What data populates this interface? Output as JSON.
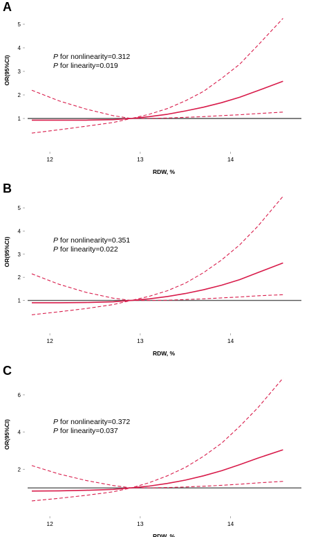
{
  "chart_data": [
    {
      "panel": "A",
      "type": "line",
      "xlabel": "RDW, %",
      "ylabel": "OR(95%CI)",
      "xlim": [
        11.8,
        14.6
      ],
      "ylim": [
        0,
        5.5
      ],
      "xticks": [
        "12",
        "13",
        "14"
      ],
      "yticks": [
        "1",
        "2",
        "3",
        "4",
        "5"
      ],
      "annotation": {
        "p_prefix": "P",
        "nonlinearity": " for nonlinearity=0.312",
        "linearity": " for linearity=0.019"
      },
      "reference_line": 1,
      "series": [
        {
          "role": "estimate",
          "style": "solid",
          "x": [
            11.8,
            12.1,
            12.4,
            12.7,
            12.9,
            13.1,
            13.3,
            13.5,
            13.7,
            13.9,
            14.1,
            14.3,
            14.58
          ],
          "y": [
            0.93,
            0.93,
            0.93,
            0.95,
            1.0,
            1.08,
            1.18,
            1.32,
            1.48,
            1.67,
            1.9,
            2.18,
            2.58
          ]
        },
        {
          "role": "upper",
          "style": "dashed",
          "x": [
            11.8,
            12.1,
            12.4,
            12.7,
            12.9,
            13.1,
            13.3,
            13.5,
            13.7,
            13.9,
            14.1,
            14.3,
            14.58
          ],
          "y": [
            2.2,
            1.75,
            1.4,
            1.12,
            1.0,
            1.18,
            1.42,
            1.75,
            2.15,
            2.7,
            3.3,
            4.1,
            5.25
          ]
        },
        {
          "role": "lower",
          "style": "dashed",
          "x": [
            11.8,
            12.1,
            12.4,
            12.7,
            12.9,
            13.1,
            13.3,
            13.5,
            13.7,
            13.9,
            14.1,
            14.3,
            14.58
          ],
          "y": [
            0.38,
            0.52,
            0.67,
            0.83,
            1.0,
            1.0,
            1.02,
            1.05,
            1.08,
            1.12,
            1.16,
            1.21,
            1.27
          ]
        }
      ],
      "colors": {
        "curve": "#d81b4a",
        "reference": "#555555"
      }
    },
    {
      "panel": "B",
      "type": "line",
      "xlabel": "RDW, %",
      "ylabel": "OR(95%CI)",
      "xlim": [
        11.8,
        14.6
      ],
      "ylim": [
        0,
        5.6
      ],
      "xticks": [
        "12",
        "13",
        "14"
      ],
      "yticks": [
        "1",
        "2",
        "3",
        "4",
        "5"
      ],
      "annotation": {
        "p_prefix": "P",
        "nonlinearity": " for nonlinearity=0.351",
        "linearity": " for linearity=0.022"
      },
      "reference_line": 1,
      "series": [
        {
          "role": "estimate",
          "style": "solid",
          "x": [
            11.8,
            12.1,
            12.4,
            12.7,
            12.9,
            13.1,
            13.3,
            13.5,
            13.7,
            13.9,
            14.1,
            14.3,
            14.58
          ],
          "y": [
            0.9,
            0.9,
            0.91,
            0.94,
            1.0,
            1.07,
            1.17,
            1.3,
            1.46,
            1.66,
            1.9,
            2.2,
            2.62
          ]
        },
        {
          "role": "upper",
          "style": "dashed",
          "x": [
            11.8,
            12.1,
            12.4,
            12.7,
            12.9,
            13.1,
            13.3,
            13.5,
            13.7,
            13.9,
            14.1,
            14.3,
            14.58
          ],
          "y": [
            2.15,
            1.7,
            1.35,
            1.1,
            1.0,
            1.18,
            1.42,
            1.75,
            2.2,
            2.75,
            3.4,
            4.2,
            5.5
          ]
        },
        {
          "role": "lower",
          "style": "dashed",
          "x": [
            11.8,
            12.1,
            12.4,
            12.7,
            12.9,
            13.1,
            13.3,
            13.5,
            13.7,
            13.9,
            14.1,
            14.3,
            14.58
          ],
          "y": [
            0.38,
            0.51,
            0.65,
            0.82,
            1.0,
            1.0,
            1.01,
            1.04,
            1.07,
            1.11,
            1.15,
            1.2,
            1.25
          ]
        }
      ],
      "colors": {
        "curve": "#d81b4a",
        "reference": "#555555"
      }
    },
    {
      "panel": "C",
      "type": "line",
      "xlabel": "RDW, %",
      "ylabel": "OR(95%CI)",
      "xlim": [
        11.8,
        14.6
      ],
      "ylim": [
        0,
        7.0
      ],
      "xticks": [
        "12",
        "13",
        "14"
      ],
      "yticks": [
        "2",
        "4",
        "6"
      ],
      "annotation": {
        "p_prefix": "P",
        "nonlinearity": " for nonlinearity=0.372",
        "linearity": " for linearity=0.037"
      },
      "reference_line": 1,
      "series": [
        {
          "role": "estimate",
          "style": "solid",
          "x": [
            11.8,
            12.1,
            12.4,
            12.7,
            12.9,
            13.1,
            13.3,
            13.5,
            13.7,
            13.9,
            14.1,
            14.3,
            14.58
          ],
          "y": [
            0.83,
            0.84,
            0.87,
            0.92,
            1.0,
            1.1,
            1.24,
            1.42,
            1.65,
            1.92,
            2.25,
            2.6,
            3.05
          ]
        },
        {
          "role": "upper",
          "style": "dashed",
          "x": [
            11.8,
            12.1,
            12.4,
            12.7,
            12.9,
            13.1,
            13.3,
            13.5,
            13.7,
            13.9,
            14.1,
            14.3,
            14.58
          ],
          "y": [
            2.2,
            1.75,
            1.4,
            1.13,
            1.0,
            1.28,
            1.65,
            2.1,
            2.7,
            3.4,
            4.3,
            5.3,
            6.9
          ]
        },
        {
          "role": "lower",
          "style": "dashed",
          "x": [
            11.8,
            12.1,
            12.4,
            12.7,
            12.9,
            13.1,
            13.3,
            13.5,
            13.7,
            13.9,
            14.1,
            14.3,
            14.58
          ],
          "y": [
            0.3,
            0.44,
            0.6,
            0.79,
            1.0,
            1.0,
            1.02,
            1.05,
            1.09,
            1.14,
            1.2,
            1.27,
            1.35
          ]
        }
      ],
      "colors": {
        "curve": "#d81b4a",
        "reference": "#555555"
      }
    }
  ]
}
